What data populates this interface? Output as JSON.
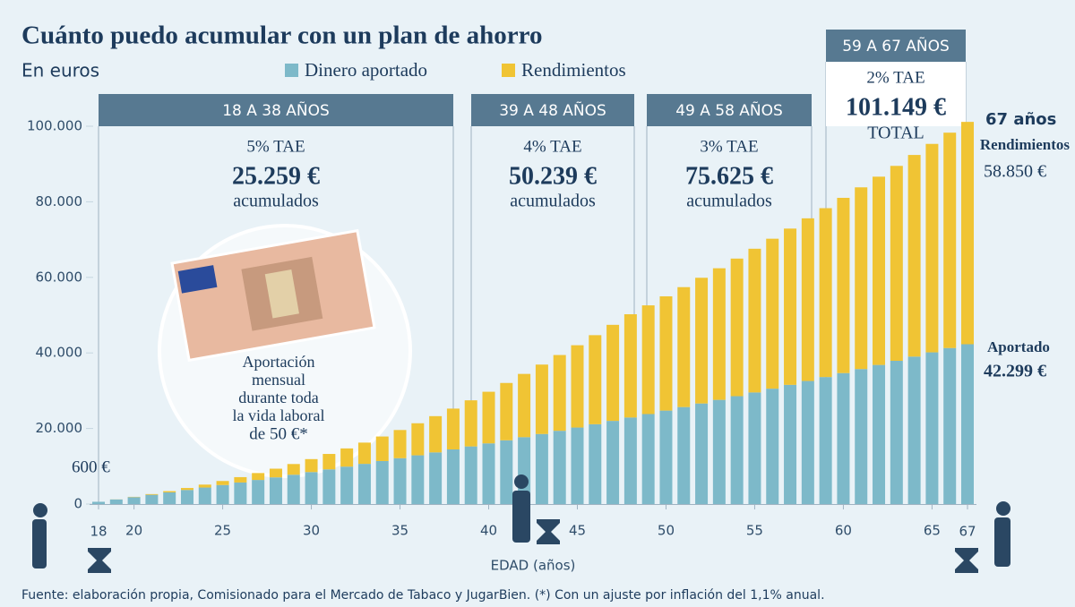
{
  "chart_data": {
    "type": "stacked_bar",
    "title": "Cuánto puedo acumular con un plan de ahorro",
    "subtitle": "En euros",
    "x": [
      18,
      19,
      20,
      21,
      22,
      23,
      24,
      25,
      26,
      27,
      28,
      29,
      30,
      31,
      32,
      33,
      34,
      35,
      36,
      37,
      38,
      39,
      40,
      41,
      42,
      43,
      44,
      45,
      46,
      47,
      48,
      49,
      50,
      51,
      52,
      53,
      54,
      55,
      56,
      57,
      58,
      59,
      60,
      61,
      62,
      63,
      64,
      65,
      66,
      67
    ],
    "xlabel": "EDAD (años)",
    "xlim": [
      18,
      67
    ],
    "xticks": [
      18,
      20,
      25,
      30,
      35,
      40,
      45,
      50,
      55,
      60,
      65,
      67
    ],
    "ylim": [
      0,
      100000
    ],
    "yticks": [
      0,
      {
        "value": 20000,
        "label": "20.000"
      },
      {
        "value": 40000,
        "label": "40.000"
      },
      {
        "value": 60000,
        "label": "60.000"
      },
      {
        "value": 80000,
        "label": "80.000"
      },
      {
        "value": 100000,
        "label": "100.000"
      }
    ],
    "series": [
      {
        "name": "Dinero aportado",
        "color": "#7db9c9",
        "values": [
          600,
          1208,
          1825,
          2449,
          3082,
          3724,
          4374,
          5033,
          5701,
          6377,
          7063,
          7759,
          8464,
          9178,
          9902,
          10636,
          11379,
          12133,
          12896,
          13670,
          14455,
          15250,
          16056,
          16873,
          17701,
          18539,
          19390,
          20251,
          21125,
          22010,
          22907,
          23816,
          24738,
          25672,
          26618,
          27578,
          28550,
          29536,
          30535,
          31547,
          32573,
          33613,
          34666,
          35734,
          36817,
          37914,
          39026,
          40153,
          41295,
          42299
        ]
      },
      {
        "name": "Rendimientos",
        "color": "#f0c434",
        "values": [
          0,
          24,
          86,
          188,
          333,
          525,
          770,
          1067,
          1420,
          1830,
          2295,
          2832,
          3428,
          4084,
          4822,
          5626,
          6497,
          7462,
          8486,
          9596,
          10804,
          12204,
          13664,
          15174,
          16744,
          18374,
          20054,
          21784,
          23574,
          25424,
          27332,
          28772,
          30242,
          31742,
          33272,
          34832,
          36422,
          38042,
          39692,
          41362,
          43052,
          44702,
          46382,
          48092,
          49832,
          51592,
          53372,
          55172,
          57002,
          58850
        ]
      }
    ],
    "phases": [
      {
        "label": "18 A 38 AÑOS",
        "rate": "5% TAE",
        "amount": "25.259 €",
        "note": "acumulados"
      },
      {
        "label": "39 A 48 AÑOS",
        "rate": "4% TAE",
        "amount": "50.239 €",
        "note": "acumulados"
      },
      {
        "label": "49 A 58 AÑOS",
        "rate": "3% TAE",
        "amount": "75.625 €",
        "note": "acumulados"
      },
      {
        "label": "59 A 67 AÑOS",
        "rate": "2% TAE",
        "amount": "101.149 €",
        "note": "TOTAL"
      }
    ],
    "annotations": {
      "first": "600 €",
      "end_age": "67 años",
      "end_returns_label": "Rendimientos",
      "end_returns": "58.850 €",
      "end_contrib_label": "Aportado",
      "end_contrib": "42.299 €",
      "circle": [
        "Aportación",
        "mensual",
        "durante toda",
        "la vida laboral",
        "de 50 €*"
      ]
    },
    "source": "Fuente: elaboración propia, Comisionado para el Mercado de Tabaco y JugarBien. (*) Con un ajuste por inflación del 1,1% anual."
  }
}
